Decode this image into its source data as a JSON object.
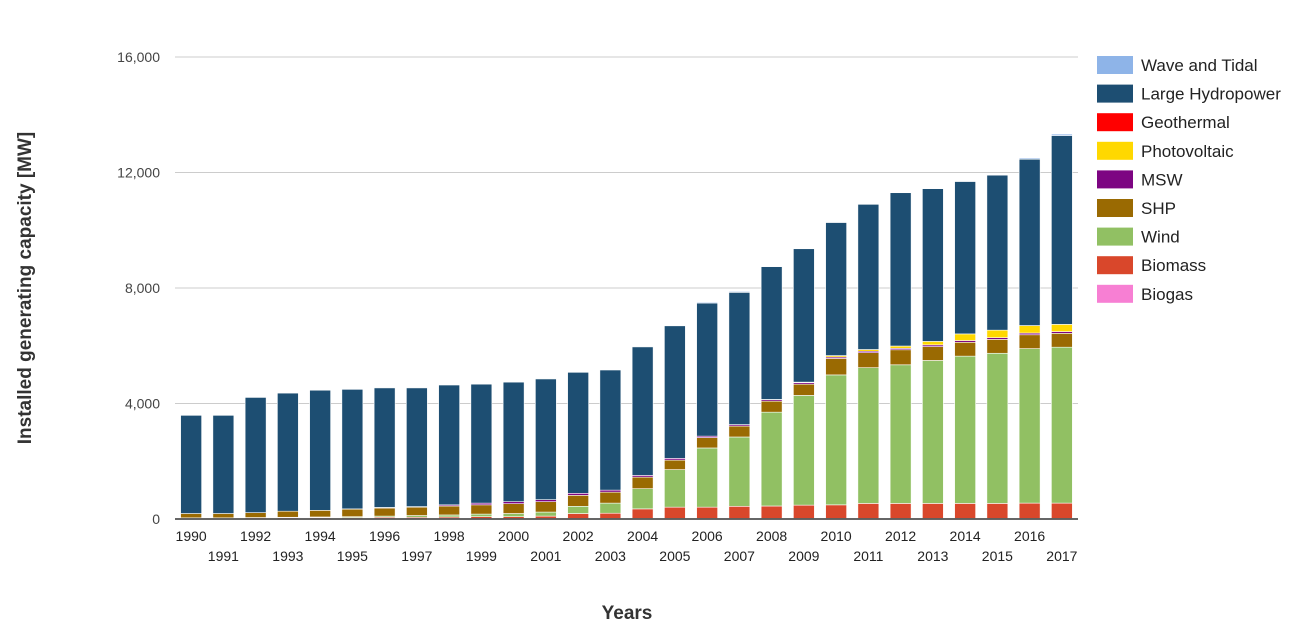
{
  "chart_data": {
    "type": "bar",
    "stacked": true,
    "xlabel": "Years",
    "ylabel": "Installed generating capacity [MW]",
    "ylim": [
      0,
      16000
    ],
    "yticks": [
      0,
      4000,
      8000,
      12000,
      16000
    ],
    "ytick_labels": [
      "0",
      "4,000",
      "8,000",
      "12,000",
      "16,000"
    ],
    "grid": true,
    "legend_position": "right",
    "categories": [
      "1990",
      "1991",
      "1992",
      "1993",
      "1994",
      "1995",
      "1996",
      "1997",
      "1998",
      "1999",
      "2000",
      "2001",
      "2002",
      "2003",
      "2004",
      "2005",
      "2006",
      "2007",
      "2008",
      "2009",
      "2010",
      "2011",
      "2012",
      "2013",
      "2014",
      "2015",
      "2016",
      "2017"
    ],
    "series": [
      {
        "name": "Biogas",
        "color": "#f77fd3",
        "values": [
          20,
          20,
          20,
          20,
          20,
          20,
          20,
          20,
          20,
          20,
          20,
          20,
          20,
          20,
          20,
          20,
          20,
          20,
          20,
          20,
          20,
          20,
          20,
          20,
          20,
          20,
          20,
          20
        ]
      },
      {
        "name": "Biomass",
        "color": "#d9472b",
        "values": [
          20,
          20,
          25,
          30,
          30,
          30,
          40,
          40,
          50,
          60,
          60,
          80,
          170,
          180,
          330,
          390,
          390,
          420,
          430,
          460,
          470,
          520,
          520,
          520,
          520,
          520,
          530,
          530
        ]
      },
      {
        "name": "Wind",
        "color": "#91c063",
        "values": [
          0,
          0,
          5,
          10,
          20,
          30,
          40,
          60,
          70,
          90,
          110,
          140,
          250,
          350,
          700,
          1300,
          2050,
          2400,
          3250,
          3800,
          4500,
          4700,
          4800,
          4950,
          5100,
          5200,
          5350,
          5400
        ]
      },
      {
        "name": "SHP",
        "color": "#9a6a02",
        "values": [
          150,
          150,
          170,
          210,
          230,
          260,
          280,
          290,
          310,
          320,
          340,
          360,
          380,
          380,
          400,
          330,
          360,
          380,
          380,
          390,
          570,
          520,
          520,
          480,
          480,
          480,
          480,
          480
        ]
      },
      {
        "name": "MSW",
        "color": "#7d0582",
        "values": [
          0,
          0,
          0,
          0,
          0,
          10,
          20,
          20,
          40,
          60,
          70,
          70,
          70,
          70,
          60,
          60,
          50,
          50,
          50,
          50,
          50,
          50,
          50,
          60,
          60,
          60,
          60,
          60
        ]
      },
      {
        "name": "Photovoltaic",
        "color": "#ffd800",
        "values": [
          0,
          0,
          0,
          0,
          0,
          0,
          0,
          0,
          0,
          0,
          0,
          0,
          0,
          0,
          0,
          0,
          0,
          0,
          10,
          20,
          50,
          60,
          80,
          120,
          230,
          260,
          260,
          250
        ]
      },
      {
        "name": "Geothermal",
        "color": "#ff0000",
        "values": [
          0,
          0,
          0,
          0,
          0,
          0,
          0,
          0,
          0,
          0,
          0,
          0,
          0,
          0,
          0,
          0,
          0,
          0,
          0,
          0,
          0,
          0,
          0,
          0,
          0,
          0,
          0,
          0
        ]
      },
      {
        "name": "Large Hydropower",
        "color": "#1d4e72",
        "values": [
          3400,
          3400,
          3990,
          4090,
          4160,
          4140,
          4140,
          4110,
          4150,
          4120,
          4140,
          4180,
          4190,
          4160,
          4450,
          4590,
          4610,
          4580,
          4600,
          4620,
          4610,
          5030,
          5310,
          5290,
          5280,
          5370,
          5760,
          6540
        ]
      },
      {
        "name": "Wave and Tidal",
        "color": "#8eb4e8",
        "values": [
          0,
          0,
          0,
          0,
          0,
          0,
          0,
          0,
          0,
          0,
          0,
          0,
          0,
          0,
          0,
          0,
          30,
          30,
          20,
          20,
          20,
          20,
          20,
          20,
          20,
          20,
          40,
          50
        ]
      }
    ],
    "legend_order": [
      "Wave and Tidal",
      "Large Hydropower",
      "Geothermal",
      "Photovoltaic",
      "MSW",
      "SHP",
      "Wind",
      "Biomass",
      "Biogas"
    ]
  }
}
